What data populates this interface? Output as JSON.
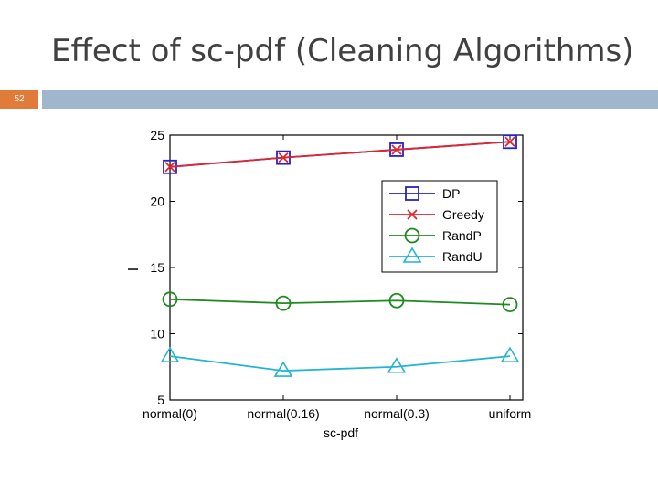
{
  "slide": {
    "title": "Effect of sc-pdf (Cleaning Algorithms)",
    "page_number": "52",
    "colors": {
      "title": "#404040",
      "number_box": "#e07b39",
      "rule": "#9fb6cd"
    }
  },
  "chart_data": {
    "type": "line",
    "categories": [
      "normal(0)",
      "normal(0.16)",
      "normal(0.3)",
      "uniform"
    ],
    "xlabel": "sc-pdf",
    "ylabel": "I",
    "ylim": [
      5,
      25
    ],
    "yticks": [
      5,
      10,
      15,
      20,
      25
    ],
    "grid": false,
    "legend_position": "top-right",
    "series": [
      {
        "name": "DP",
        "values": [
          22.6,
          23.3,
          23.9,
          24.5
        ],
        "color": "#2323c8",
        "marker": "square"
      },
      {
        "name": "Greedy",
        "values": [
          22.6,
          23.3,
          23.9,
          24.5
        ],
        "color": "#e0262e",
        "marker": "x"
      },
      {
        "name": "RandP",
        "values": [
          12.6,
          12.3,
          12.5,
          12.2
        ],
        "color": "#1f8a1f",
        "marker": "circle"
      },
      {
        "name": "RandU",
        "values": [
          8.3,
          7.2,
          7.5,
          8.3
        ],
        "color": "#22b5cf",
        "marker": "triangle"
      }
    ]
  }
}
